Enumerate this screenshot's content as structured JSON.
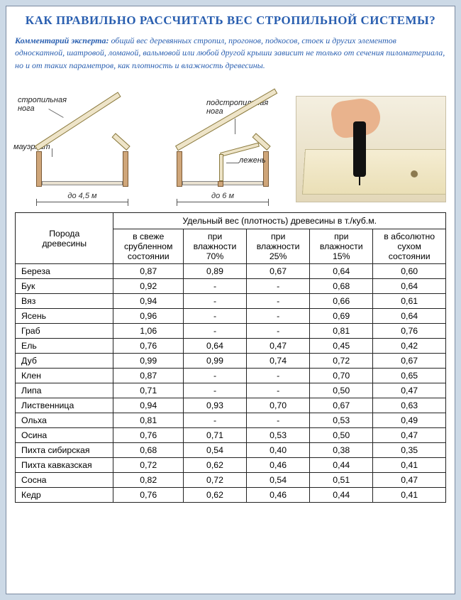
{
  "title": "КАК ПРАВИЛЬНО РАССЧИТАТЬ  ВЕС СТРОПИЛЬНОЙ  СИСТЕМЫ?",
  "subtitle_lead": "Комментарий эксперта:",
  "subtitle_body": " общий вес деревянных стропил, прогонов, подкосов, стоек и других элементов односкатной, шатровой, ломаной, вальмовой или любой другой крыши зависит не только от сечения пиломатериала,  но и от таких параметров, как плотность и влажность древесины.",
  "diagrams": {
    "a": {
      "label_rafter": "стропильная\nнога",
      "label_plate": "мауэрлат",
      "dim": "до 4,5 м"
    },
    "b": {
      "label_rafter": "подстропильная\nнога",
      "label_sill": "лежень",
      "dim": "до 6 м"
    }
  },
  "table": {
    "row_header": "Порода\nдревесины",
    "group_header": "Удельный вес (плотность) древесины в т./куб.м.",
    "columns": [
      "в свеже\nсрубленном\nсостоянии",
      "при\nвлажности\n70%",
      "при\nвлажности\n25%",
      "при\nвлажности\n15%",
      "в абсолютно\nсухом\nсостоянии"
    ],
    "rows": [
      [
        "Береза",
        "0,87",
        "0,89",
        "0,67",
        "0,64",
        "0,60"
      ],
      [
        "Бук",
        "0,92",
        "-",
        "-",
        "0,68",
        "0,64"
      ],
      [
        "Вяз",
        "0,94",
        "-",
        "-",
        "0,66",
        "0,61"
      ],
      [
        "Ясень",
        "0,96",
        "-",
        "-",
        "0,69",
        "0,64"
      ],
      [
        "Граб",
        "1,06",
        "-",
        "-",
        "0,81",
        "0,76"
      ],
      [
        "Ель",
        "0,76",
        "0,64",
        "0,47",
        "0,45",
        "0,42"
      ],
      [
        "Дуб",
        "0,99",
        "0,99",
        "0,74",
        "0,72",
        "0,67"
      ],
      [
        "Клен",
        "0,87",
        "-",
        "-",
        "0,70",
        "0,65"
      ],
      [
        "Липа",
        "0,71",
        "-",
        "-",
        "0,50",
        "0,47"
      ],
      [
        "Лиственница",
        "0,94",
        "0,93",
        "0,70",
        "0,67",
        "0,63"
      ],
      [
        "Ольха",
        "0,81",
        "-",
        "-",
        "0,53",
        "0,49"
      ],
      [
        "Осина",
        "0,76",
        "0,71",
        "0,53",
        "0,50",
        "0,47"
      ],
      [
        "Пихта сибирская",
        "0,68",
        "0,54",
        "0,40",
        "0,38",
        "0,35"
      ],
      [
        "Пихта кавказская",
        "0,72",
        "0,62",
        "0,46",
        "0,44",
        "0,41"
      ],
      [
        "Сосна",
        "0,82",
        "0,72",
        "0,54",
        "0,51",
        "0,47"
      ],
      [
        "Кедр",
        "0,76",
        "0,62",
        "0,46",
        "0,44",
        "0,41"
      ]
    ]
  },
  "colors": {
    "page_bg": "#ccd9e6",
    "heading": "#2a5fb0",
    "table_border": "#222222",
    "wood_fill": "#eee4c8",
    "wood_edge": "#8a7a3f",
    "wall_fill": "#cfa67a"
  }
}
